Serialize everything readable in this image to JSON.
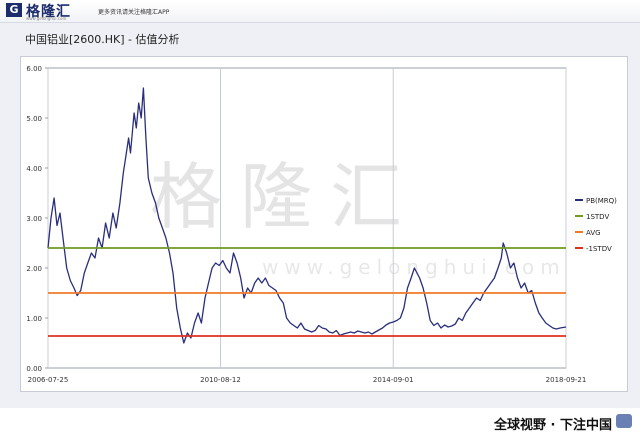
{
  "brand": {
    "logo_glyph": "G",
    "name": "格隆汇",
    "site": "www.gelonghui.com",
    "tagline": "更多资讯请关注格隆汇APP"
  },
  "page_title": "中国铝业[2600.HK] - 估值分析",
  "watermark": {
    "cn": "格隆汇",
    "en": "www.gelonghui.com"
  },
  "footer": {
    "slogan": "全球视野 · 下注中国",
    "icon": "app-icon"
  },
  "chart_data": {
    "type": "line",
    "title": "中国铝业[2600.HK] - 估值分析",
    "xlabel": "",
    "ylabel": "",
    "ylim": [
      0,
      6
    ],
    "yticks": [
      "0.00",
      "1.00",
      "2.00",
      "3.00",
      "4.00",
      "5.00",
      "6.00"
    ],
    "x_range": [
      "2006-07-25",
      "2018-09-21"
    ],
    "xticks": [
      {
        "label": "2006-07-25",
        "date": "2006-07-25"
      },
      {
        "label": "2010-08-12",
        "date": "2010-08-12"
      },
      {
        "label": "2014-09-01",
        "date": "2014-09-01"
      },
      {
        "label": "2018-09-21",
        "date": "2018-09-21"
      }
    ],
    "grid": "vertical",
    "legend": "right",
    "series": [
      {
        "name": "PB(MRQ)",
        "color": "#2a2f7d",
        "style": "line",
        "points": [
          [
            "2006-07-25",
            2.4
          ],
          [
            "2006-08-20",
            3.0
          ],
          [
            "2006-09-15",
            3.4
          ],
          [
            "2006-10-10",
            2.85
          ],
          [
            "2006-11-05",
            3.1
          ],
          [
            "2006-12-01",
            2.6
          ],
          [
            "2007-01-01",
            2.0
          ],
          [
            "2007-02-01",
            1.75
          ],
          [
            "2007-03-05",
            1.6
          ],
          [
            "2007-04-01",
            1.45
          ],
          [
            "2007-05-01",
            1.55
          ],
          [
            "2007-06-01",
            1.9
          ],
          [
            "2007-07-01",
            2.1
          ],
          [
            "2007-08-01",
            2.3
          ],
          [
            "2007-09-01",
            2.2
          ],
          [
            "2007-10-01",
            2.6
          ],
          [
            "2007-11-01",
            2.4
          ],
          [
            "2007-12-01",
            2.9
          ],
          [
            "2008-01-01",
            2.6
          ],
          [
            "2008-02-01",
            3.1
          ],
          [
            "2008-03-01",
            2.8
          ],
          [
            "2008-04-01",
            3.3
          ],
          [
            "2008-05-01",
            3.9
          ],
          [
            "2008-05-20",
            4.2
          ],
          [
            "2008-06-15",
            4.6
          ],
          [
            "2008-07-01",
            4.3
          ],
          [
            "2008-08-01",
            5.1
          ],
          [
            "2008-08-20",
            4.8
          ],
          [
            "2008-09-10",
            5.3
          ],
          [
            "2008-10-01",
            5.0
          ],
          [
            "2008-10-20",
            5.6
          ],
          [
            "2008-11-10",
            4.6
          ],
          [
            "2008-12-01",
            3.8
          ],
          [
            "2009-01-01",
            3.5
          ],
          [
            "2009-02-01",
            3.3
          ],
          [
            "2009-03-01",
            3.0
          ],
          [
            "2009-04-01",
            2.8
          ],
          [
            "2009-05-01",
            2.6
          ],
          [
            "2009-06-01",
            2.3
          ],
          [
            "2009-07-01",
            1.9
          ],
          [
            "2009-08-01",
            1.2
          ],
          [
            "2009-09-01",
            0.8
          ],
          [
            "2009-10-01",
            0.5
          ],
          [
            "2009-11-01",
            0.7
          ],
          [
            "2009-12-01",
            0.6
          ],
          [
            "2010-01-01",
            0.9
          ],
          [
            "2010-02-01",
            1.1
          ],
          [
            "2010-03-01",
            0.9
          ],
          [
            "2010-04-01",
            1.4
          ],
          [
            "2010-05-01",
            1.7
          ],
          [
            "2010-06-01",
            2.0
          ],
          [
            "2010-07-01",
            2.1
          ],
          [
            "2010-08-01",
            2.05
          ],
          [
            "2010-09-01",
            2.15
          ],
          [
            "2010-10-01",
            2.0
          ],
          [
            "2010-11-01",
            1.9
          ],
          [
            "2010-12-01",
            2.3
          ],
          [
            "2011-01-01",
            2.1
          ],
          [
            "2011-02-01",
            1.8
          ],
          [
            "2011-03-01",
            1.4
          ],
          [
            "2011-04-01",
            1.6
          ],
          [
            "2011-05-01",
            1.5
          ],
          [
            "2011-06-01",
            1.7
          ],
          [
            "2011-07-01",
            1.8
          ],
          [
            "2011-08-01",
            1.7
          ],
          [
            "2011-09-01",
            1.8
          ],
          [
            "2011-10-01",
            1.65
          ],
          [
            "2011-11-01",
            1.6
          ],
          [
            "2011-12-01",
            1.55
          ],
          [
            "2012-01-01",
            1.4
          ],
          [
            "2012-02-01",
            1.3
          ],
          [
            "2012-03-01",
            1.0
          ],
          [
            "2012-04-01",
            0.9
          ],
          [
            "2012-05-01",
            0.85
          ],
          [
            "2012-06-01",
            0.8
          ],
          [
            "2012-07-01",
            0.9
          ],
          [
            "2012-08-01",
            0.78
          ],
          [
            "2012-09-01",
            0.75
          ],
          [
            "2012-10-01",
            0.72
          ],
          [
            "2012-11-01",
            0.75
          ],
          [
            "2012-12-01",
            0.85
          ],
          [
            "2013-01-01",
            0.8
          ],
          [
            "2013-02-01",
            0.78
          ],
          [
            "2013-03-01",
            0.72
          ],
          [
            "2013-04-01",
            0.7
          ],
          [
            "2013-05-01",
            0.75
          ],
          [
            "2013-06-01",
            0.65
          ],
          [
            "2013-07-01",
            0.68
          ],
          [
            "2013-08-01",
            0.7
          ],
          [
            "2013-09-01",
            0.72
          ],
          [
            "2013-10-01",
            0.7
          ],
          [
            "2013-11-01",
            0.74
          ],
          [
            "2013-12-01",
            0.72
          ],
          [
            "2014-01-01",
            0.7
          ],
          [
            "2014-02-01",
            0.72
          ],
          [
            "2014-03-01",
            0.68
          ],
          [
            "2014-04-01",
            0.72
          ],
          [
            "2014-05-01",
            0.76
          ],
          [
            "2014-06-01",
            0.8
          ],
          [
            "2014-07-01",
            0.86
          ],
          [
            "2014-08-01",
            0.9
          ],
          [
            "2014-09-01",
            0.92
          ],
          [
            "2014-10-01",
            0.95
          ],
          [
            "2014-11-01",
            1.0
          ],
          [
            "2014-12-01",
            1.2
          ],
          [
            "2015-01-01",
            1.6
          ],
          [
            "2015-02-01",
            1.8
          ],
          [
            "2015-03-01",
            2.0
          ],
          [
            "2015-04-15",
            1.8
          ],
          [
            "2015-05-15",
            1.6
          ],
          [
            "2015-06-15",
            1.3
          ],
          [
            "2015-07-15",
            0.95
          ],
          [
            "2015-08-15",
            0.85
          ],
          [
            "2015-09-15",
            0.9
          ],
          [
            "2015-10-15",
            0.8
          ],
          [
            "2015-11-15",
            0.86
          ],
          [
            "2015-12-15",
            0.82
          ],
          [
            "2016-01-15",
            0.84
          ],
          [
            "2016-02-15",
            0.88
          ],
          [
            "2016-03-15",
            1.0
          ],
          [
            "2016-04-15",
            0.95
          ],
          [
            "2016-05-15",
            1.1
          ],
          [
            "2016-06-15",
            1.2
          ],
          [
            "2016-07-15",
            1.3
          ],
          [
            "2016-08-15",
            1.4
          ],
          [
            "2016-09-15",
            1.35
          ],
          [
            "2016-10-15",
            1.5
          ],
          [
            "2016-11-15",
            1.6
          ],
          [
            "2016-12-15",
            1.7
          ],
          [
            "2017-01-15",
            1.8
          ],
          [
            "2017-02-15",
            2.0
          ],
          [
            "2017-03-15",
            2.2
          ],
          [
            "2017-04-01",
            2.5
          ],
          [
            "2017-05-01",
            2.3
          ],
          [
            "2017-06-01",
            2.0
          ],
          [
            "2017-07-01",
            2.1
          ],
          [
            "2017-08-01",
            1.8
          ],
          [
            "2017-09-01",
            1.6
          ],
          [
            "2017-10-01",
            1.7
          ],
          [
            "2017-11-01",
            1.5
          ],
          [
            "2017-12-01",
            1.55
          ],
          [
            "2018-01-01",
            1.3
          ],
          [
            "2018-02-01",
            1.1
          ],
          [
            "2018-03-01",
            1.0
          ],
          [
            "2018-04-01",
            0.9
          ],
          [
            "2018-05-01",
            0.85
          ],
          [
            "2018-06-01",
            0.8
          ],
          [
            "2018-07-01",
            0.78
          ],
          [
            "2018-08-01",
            0.8
          ],
          [
            "2018-09-21",
            0.82
          ]
        ]
      },
      {
        "name": "1STDV",
        "color": "#6f9a25",
        "style": "hline",
        "value": 2.4
      },
      {
        "name": "AVG",
        "color": "#f07a2a",
        "style": "hline",
        "value": 1.5
      },
      {
        "name": "-1STDV",
        "color": "#e0301e",
        "style": "hline",
        "value": 0.64
      }
    ]
  }
}
